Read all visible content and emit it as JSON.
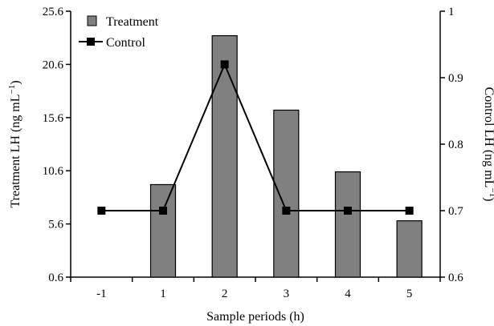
{
  "chart_data": {
    "type": "bar",
    "categories": [
      "-1",
      "1",
      "2",
      "3",
      "4",
      "5"
    ],
    "xlabel": "Sample periods (h)",
    "ylabel": "Treatment LH (ng mL",
    "ylabel_sup": "−1",
    "ylabel_close": ")",
    "y2label": "Control LH (ng mL",
    "y2label_sup": "−1",
    "y2label_close": ")",
    "ylim": [
      0.6,
      25.6
    ],
    "y2lim": [
      0.6,
      1.0
    ],
    "yticks": [
      "0.6",
      "5.6",
      "10.6",
      "15.6",
      "20.6",
      "25.6"
    ],
    "y2ticks": [
      "0.6",
      "0.7",
      "0.8",
      "0.9",
      "1"
    ],
    "series": [
      {
        "name": "Treatment",
        "type": "bar",
        "axis": "left",
        "color": "#808080",
        "values": [
          null,
          9.3,
          23.3,
          16.3,
          10.5,
          5.9
        ]
      },
      {
        "name": "Control",
        "type": "line",
        "axis": "right",
        "color": "#000000",
        "values": [
          0.7,
          0.7,
          0.92,
          0.7,
          0.7,
          0.7
        ]
      }
    ],
    "legend_position": "top-left",
    "grid": false
  }
}
